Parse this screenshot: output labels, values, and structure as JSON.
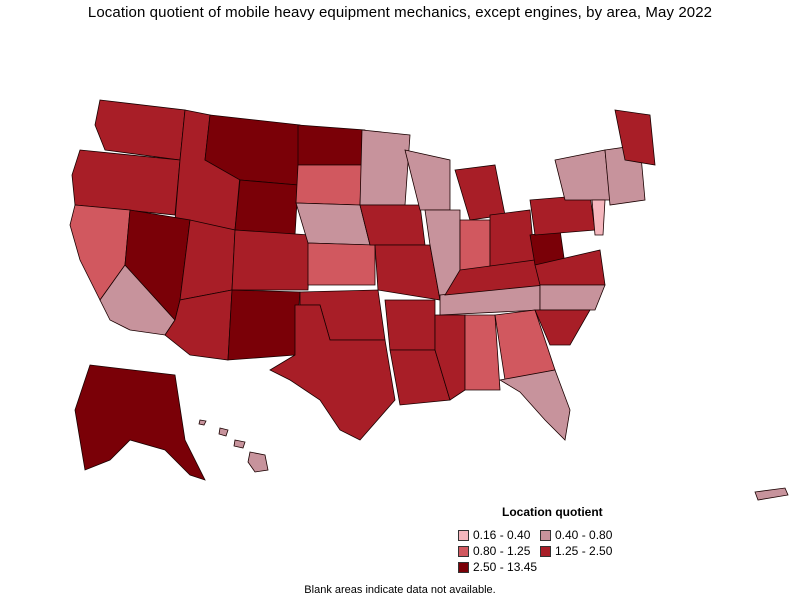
{
  "title": "Location quotient of mobile heavy equipment mechanics, except engines, by area, May 2022",
  "legend": {
    "title": "Location quotient",
    "items": [
      {
        "label": "0.16 - 0.40",
        "color": "#f4b6bd"
      },
      {
        "label": "0.40 - 0.80",
        "color": "#c7939c"
      },
      {
        "label": "0.80 - 1.25",
        "color": "#d1585f"
      },
      {
        "label": "1.25 - 2.50",
        "color": "#a81e27"
      },
      {
        "label": "2.50 - 13.45",
        "color": "#7a0007"
      }
    ]
  },
  "footnote": "Blank areas indicate data not available.",
  "colors": {
    "border": "#1a0000",
    "no_data": "#ffffff"
  }
}
